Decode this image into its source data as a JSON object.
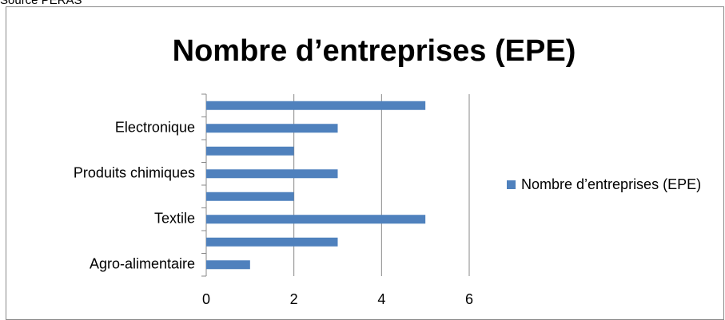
{
  "source": "Source PERAS",
  "chart_data": {
    "type": "hbar",
    "title": "Nombre d’entreprises (EPE)",
    "categories": [
      "Agro-alimentaire",
      null,
      "Textile",
      null,
      "Produits chimiques",
      null,
      "Electronique",
      null
    ],
    "series": [
      {
        "name": "Nombre d’entreprises (EPE)",
        "color": "#4f81bd",
        "values": [
          1,
          3,
          5,
          2,
          3,
          2,
          3,
          5
        ]
      }
    ],
    "xlim": [
      0,
      6
    ],
    "xticks": [
      0,
      2,
      4,
      6
    ],
    "grid": true,
    "legend": "right"
  }
}
